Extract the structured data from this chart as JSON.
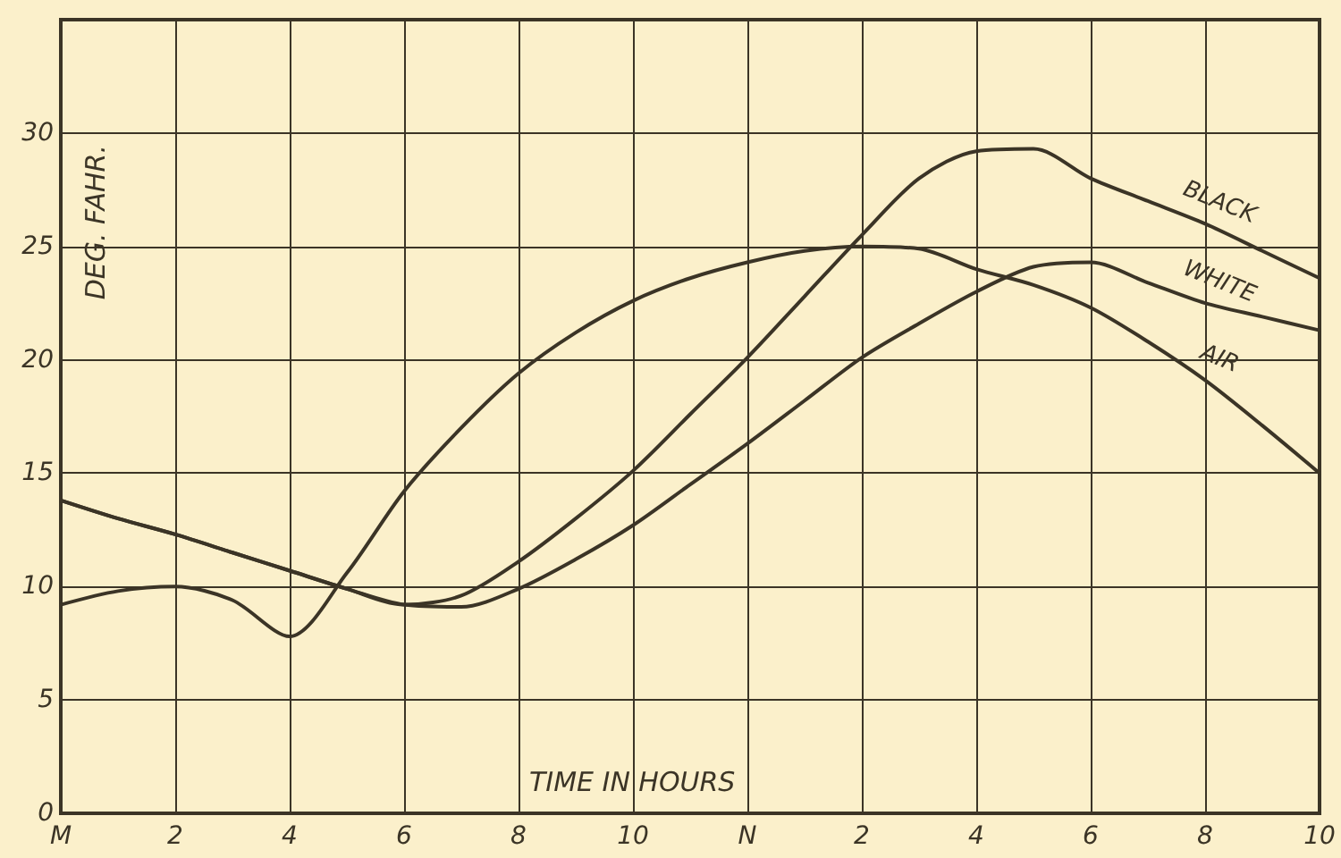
{
  "chart_data": {
    "type": "line",
    "xlabel": "TIME IN HOURS",
    "ylabel": "DEG. FAHR.",
    "categories": [
      "M",
      null,
      "2",
      null,
      "4",
      null,
      "6",
      null,
      "8",
      null,
      "10",
      null,
      "N",
      null,
      "2",
      null,
      "4",
      null,
      "6",
      null,
      "8",
      null,
      "10"
    ],
    "ylim": [
      0,
      35
    ],
    "yticks": [
      0,
      5,
      10,
      15,
      20,
      25,
      30,
      {
        "value": 35,
        "label": null
      }
    ],
    "grid": true,
    "legend": false,
    "marker": "none",
    "line_style": "solid",
    "series": [
      {
        "name": "BLACK",
        "color": "#3b3426",
        "values": [
          13.8,
          13.0,
          12.3,
          11.5,
          10.7,
          9.9,
          9.2,
          9.6,
          11.1,
          13.0,
          15.1,
          17.6,
          20.1,
          22.8,
          25.5,
          28.0,
          29.2,
          29.3,
          28.0,
          27.0,
          26.0,
          24.8,
          23.6
        ]
      },
      {
        "name": "WHITE",
        "color": "#3b3426",
        "values": [
          13.8,
          13.0,
          12.3,
          11.5,
          10.7,
          9.9,
          9.2,
          9.1,
          9.9,
          11.2,
          12.7,
          14.5,
          16.3,
          18.2,
          20.1,
          21.6,
          23.0,
          24.1,
          24.3,
          23.4,
          22.5,
          21.9,
          21.3
        ]
      },
      {
        "name": "AIR",
        "color": "#3b3426",
        "values": [
          9.2,
          9.8,
          10.0,
          9.4,
          7.8,
          10.6,
          14.2,
          17.0,
          19.4,
          21.2,
          22.6,
          23.6,
          24.3,
          24.8,
          25.0,
          24.9,
          24.0,
          23.3,
          22.3,
          20.8,
          19.1,
          17.1,
          15.0
        ]
      }
    ]
  }
}
